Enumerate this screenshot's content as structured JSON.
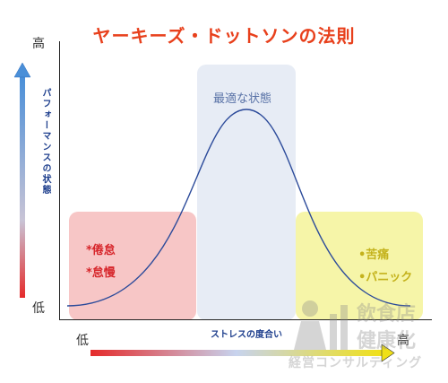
{
  "title": "ヤーキーズ・ドットソンの法則",
  "y_axis": {
    "label": "パフォーマンスの状態",
    "high": "高",
    "low": "低"
  },
  "x_axis": {
    "label": "ストレスの度合い",
    "low": "低",
    "high": "高"
  },
  "zones": {
    "low_stress": {
      "items": [
        "*倦怠",
        "*怠慢"
      ]
    },
    "optimal": {
      "label": "最適な状態"
    },
    "high_stress": {
      "items": [
        "•苦痛",
        "•パニック"
      ]
    }
  },
  "watermark": {
    "line1": "飲食店",
    "line2": "健康化",
    "line3": "経営コンサルティング"
  },
  "colors": {
    "title": "#e8401c",
    "axis_label": "#1c3d8c",
    "curve": "#2b4a9a",
    "low_zone": "#f7c6c6",
    "optimal_zone": "#e7ecf5",
    "high_zone": "#f6f5a8",
    "arrow_low": "#e52a2a",
    "arrow_high": "#f0e018",
    "y_arrow_top": "#4a8fd8"
  }
}
